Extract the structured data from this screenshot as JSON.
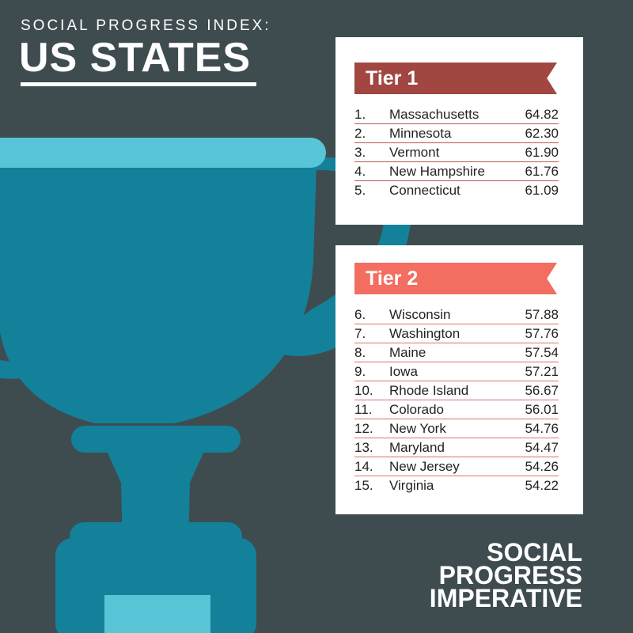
{
  "header": {
    "kicker": "SOCIAL PROGRESS INDEX:",
    "title": "US STATES"
  },
  "tier1": {
    "label": "Tier 1",
    "rows": [
      {
        "rank": "1.",
        "state": "Massachusetts",
        "score": "64.82"
      },
      {
        "rank": "2.",
        "state": "Minnesota",
        "score": "62.30"
      },
      {
        "rank": "3.",
        "state": "Vermont",
        "score": "61.90"
      },
      {
        "rank": "4.",
        "state": "New Hampshire",
        "score": "61.76"
      },
      {
        "rank": "5.",
        "state": "Connecticut",
        "score": "61.09"
      }
    ]
  },
  "tier2": {
    "label": "Tier 2",
    "rows": [
      {
        "rank": "6.",
        "state": "Wisconsin",
        "score": "57.88"
      },
      {
        "rank": "7.",
        "state": "Washington",
        "score": "57.76"
      },
      {
        "rank": "8.",
        "state": "Maine",
        "score": "57.54"
      },
      {
        "rank": "9.",
        "state": "Iowa",
        "score": "57.21"
      },
      {
        "rank": "10.",
        "state": "Rhode Island",
        "score": "56.67"
      },
      {
        "rank": "11.",
        "state": "Colorado",
        "score": "56.01"
      },
      {
        "rank": "12.",
        "state": "New York",
        "score": "54.76"
      },
      {
        "rank": "13.",
        "state": "Maryland",
        "score": "54.47"
      },
      {
        "rank": "14.",
        "state": "New Jersey",
        "score": "54.26"
      },
      {
        "rank": "15.",
        "state": "Virginia",
        "score": "54.22"
      }
    ]
  },
  "logo": {
    "line1": "SOCIAL",
    "line2": "PROGRESS",
    "line3": "IMPERATIVE"
  },
  "colors": {
    "background": "#3e4c50",
    "trophy_dark": "#13819a",
    "trophy_light": "#58c5d6",
    "tier1_banner": "#a14640",
    "tier2_banner": "#f36d61"
  },
  "icons": {
    "trophy": "trophy-icon"
  }
}
